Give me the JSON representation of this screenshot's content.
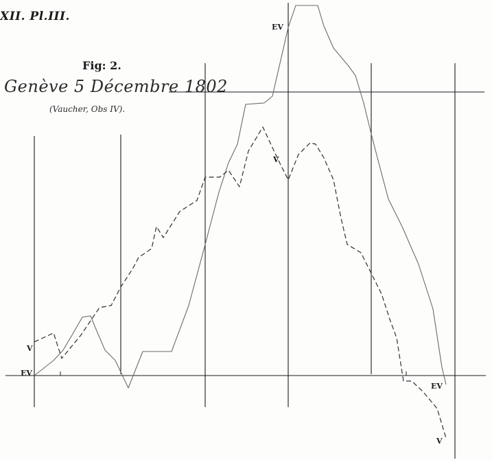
{
  "header": {
    "plate_number": "XII. Pl.III.",
    "figure_label": "Fig: 2.",
    "location_date": "Genève 5 Décembre 1802",
    "source_note": "(Vaucher, Obs IV)."
  },
  "curve_labels": {
    "v_left": "V",
    "ev_left": "EV",
    "ev_top": "EV",
    "v_mid": "V",
    "ev_right": "EV",
    "v_bottom": "V"
  },
  "colors": {
    "ink": "#1b1b1b",
    "solid_curve": "#6a6a6a",
    "dashed_curve": "#2e2e2e",
    "paper": "#fdfdfc"
  }
}
